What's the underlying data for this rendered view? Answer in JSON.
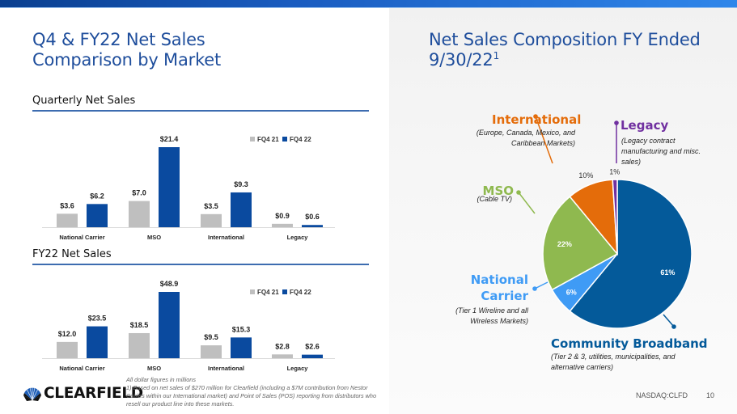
{
  "left": {
    "title_line1": "Q4 & FY22 Net Sales",
    "title_line2": "Comparison by Market",
    "quarterly_label": "Quarterly Net Sales",
    "fy_label": "FY22 Net Sales"
  },
  "right": {
    "title_line1": "Net Sales Composition FY Ended",
    "title_line2": "9/30/22",
    "title_sup": "1"
  },
  "footnote": {
    "line1": "All dollar figures in millions",
    "line2": "1) Based on net sales of $270 million for Clearfield (including a $7M contribution from Nestor Cables within our International market) and Point of Sales (POS) reporting from distributors who resell our product line into these markets."
  },
  "logo": {
    "text": "CLEARFIELD",
    "icon": "clearfield-fan-logo-icon"
  },
  "footer": {
    "ticker": "NASDAQ:CLFD",
    "page": "10"
  },
  "colors": {
    "title_blue": "#1f4e9c",
    "bar_prior": "#bfbfbf",
    "bar_current": "#0a4a9f",
    "community_broadband": "#045a9a",
    "national_carrier": "#3f9bf5",
    "mso": "#8fb94f",
    "international": "#e46c0a",
    "legacy": "#7030a0"
  },
  "chart_data": [
    {
      "type": "bar",
      "title": "Quarterly Net Sales",
      "categories": [
        "National Carrier",
        "MSO",
        "International",
        "Legacy"
      ],
      "series": [
        {
          "name": "FQ4 21",
          "values": [
            3.6,
            7.0,
            3.5,
            0.9
          ],
          "labels": [
            "$3.6",
            "$7.0",
            "$3.5",
            "$0.9"
          ]
        },
        {
          "name": "FQ4 22",
          "values": [
            6.2,
            21.4,
            9.3,
            0.6
          ],
          "labels": [
            "$6.2",
            "$21.4",
            "$9.3",
            "$0.6"
          ]
        }
      ],
      "ylim": [
        0,
        22
      ],
      "legend": "top-right",
      "grid": false,
      "xlabel": "",
      "ylabel": ""
    },
    {
      "type": "bar",
      "title": "FY22 Net Sales",
      "categories": [
        "National Carrier",
        "MSO",
        "International",
        "Legacy"
      ],
      "series": [
        {
          "name": "FQ4 21",
          "values": [
            12.0,
            18.5,
            9.5,
            2.8
          ],
          "labels": [
            "$12.0",
            "$18.5",
            "$9.5",
            "$2.8"
          ]
        },
        {
          "name": "FQ4 22",
          "values": [
            23.5,
            48.9,
            15.3,
            2.6
          ],
          "labels": [
            "$23.5",
            "$48.9",
            "$15.3",
            "$2.6"
          ]
        }
      ],
      "ylim": [
        0,
        50
      ],
      "legend": "top-right",
      "grid": false,
      "xlabel": "",
      "ylabel": ""
    },
    {
      "type": "pie",
      "title": "Net Sales Composition FY Ended 9/30/22",
      "slices": [
        {
          "name": "Community Broadband",
          "value": 61,
          "label": "61%",
          "description": "(Tier 2 & 3, utilities, municipalities, and alternative carriers)"
        },
        {
          "name": "National Carrier",
          "value": 6,
          "label": "6%",
          "description": "(Tier 1 Wireline and all Wireless Markets)"
        },
        {
          "name": "MSO",
          "value": 22,
          "label": "22%",
          "description": "(Cable TV)"
        },
        {
          "name": "International",
          "value": 10,
          "label": "10%",
          "description": "(Europe, Canada, Mexico, and Caribbean Markets)"
        },
        {
          "name": "Legacy",
          "value": 1,
          "label": "1%",
          "description": "(Legacy contract manufacturing and misc. sales)"
        }
      ],
      "legend": "callouts"
    }
  ]
}
